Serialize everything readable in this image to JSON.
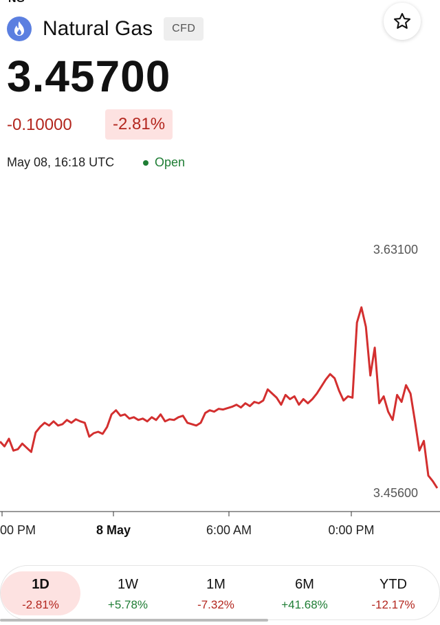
{
  "header": {
    "ticker": "NG",
    "name": "Natural Gas",
    "badge": "CFD",
    "logo_icon": "flame-icon",
    "favorite_icon": "star-outline-icon"
  },
  "quote": {
    "price": "3.45700",
    "change_abs": "-0.10000",
    "change_pct": "-2.81%",
    "timestamp": "May 08, 16:18 UTC",
    "status": "Open"
  },
  "chart_data": {
    "type": "line",
    "ylim": [
      3.456,
      3.631
    ],
    "y_labels": [
      "3.63100",
      "3.45600"
    ],
    "x_ticks": [
      "00 PM",
      "8 May",
      "6:00 AM",
      "0:00 PM"
    ],
    "series": [
      {
        "color": "#d32f2f",
        "values": [
          3.4925,
          3.489,
          3.4945,
          3.486,
          3.487,
          3.491,
          3.488,
          3.485,
          3.499,
          3.503,
          3.506,
          3.504,
          3.507,
          3.504,
          3.505,
          3.508,
          3.506,
          3.5085,
          3.507,
          3.506,
          3.496,
          3.4985,
          3.4995,
          3.498,
          3.503,
          3.512,
          3.515,
          3.511,
          3.512,
          3.509,
          3.51,
          3.508,
          3.509,
          3.507,
          3.51,
          3.508,
          3.512,
          3.507,
          3.5085,
          3.508,
          3.51,
          3.511,
          3.506,
          3.505,
          3.504,
          3.506,
          3.513,
          3.515,
          3.514,
          3.516,
          3.5155,
          3.5165,
          3.5175,
          3.519,
          3.517,
          3.52,
          3.518,
          3.521,
          3.52,
          3.522,
          3.53,
          3.527,
          3.524,
          3.519,
          3.526,
          3.523,
          3.525,
          3.519,
          3.523,
          3.52,
          3.523,
          3.527,
          3.532,
          3.537,
          3.541,
          3.538,
          3.529,
          3.522,
          3.525,
          3.524,
          3.578,
          3.589,
          3.575,
          3.54,
          3.56,
          3.52,
          3.525,
          3.514,
          3.508,
          3.526,
          3.521,
          3.533,
          3.527,
          3.507,
          3.486,
          3.493,
          3.468,
          3.464,
          3.459
        ]
      }
    ]
  },
  "tabs": [
    {
      "label": "1D",
      "pct": "-2.81%",
      "sign": "neg",
      "active": true
    },
    {
      "label": "1W",
      "pct": "+5.78%",
      "sign": "pos",
      "active": false
    },
    {
      "label": "1M",
      "pct": "-7.32%",
      "sign": "neg",
      "active": false
    },
    {
      "label": "6M",
      "pct": "+41.68%",
      "sign": "pos",
      "active": false
    },
    {
      "label": "YTD",
      "pct": "-12.17%",
      "sign": "neg",
      "active": false
    }
  ]
}
